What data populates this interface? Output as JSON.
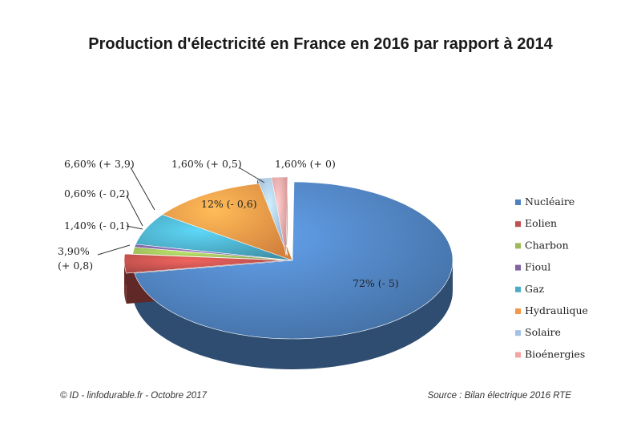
{
  "chart_data": {
    "type": "pie",
    "title": "Production d'électricité en France en 2016 par rapport à 2014",
    "legend_position": "right",
    "slices": [
      {
        "name": "Nucléaire",
        "value": 72.0,
        "label": "72% (- 5)",
        "color": "#4f81bd"
      },
      {
        "name": "Eolien",
        "value": 3.9,
        "label": "3,90% (+ 0,8)",
        "color": "#c0504d"
      },
      {
        "name": "Charbon",
        "value": 1.4,
        "label": "1,40% (- 0,1)",
        "color": "#9bbb59"
      },
      {
        "name": "Fioul",
        "value": 0.6,
        "label": "0,60% (- 0,2)",
        "color": "#8064a2"
      },
      {
        "name": "Gaz",
        "value": 6.6,
        "label": "6,60% (+ 3,9)",
        "color": "#4bacc6"
      },
      {
        "name": "Hydraulique",
        "value": 12.0,
        "label": "12% (- 0,6)",
        "color": "#f79646"
      },
      {
        "name": "Solaire",
        "value": 1.6,
        "label": "1,60% (+ 0,5)",
        "color": "#a5c0e8"
      },
      {
        "name": "Bioénergies",
        "value": 1.6,
        "label": "1,60% (+ 0)",
        "color": "#f2a5a5"
      }
    ]
  },
  "footer": {
    "credit": "© ID - linfodurable.fr - Octobre 2017",
    "source": "Source : Bilan électrique 2016 RTE"
  }
}
